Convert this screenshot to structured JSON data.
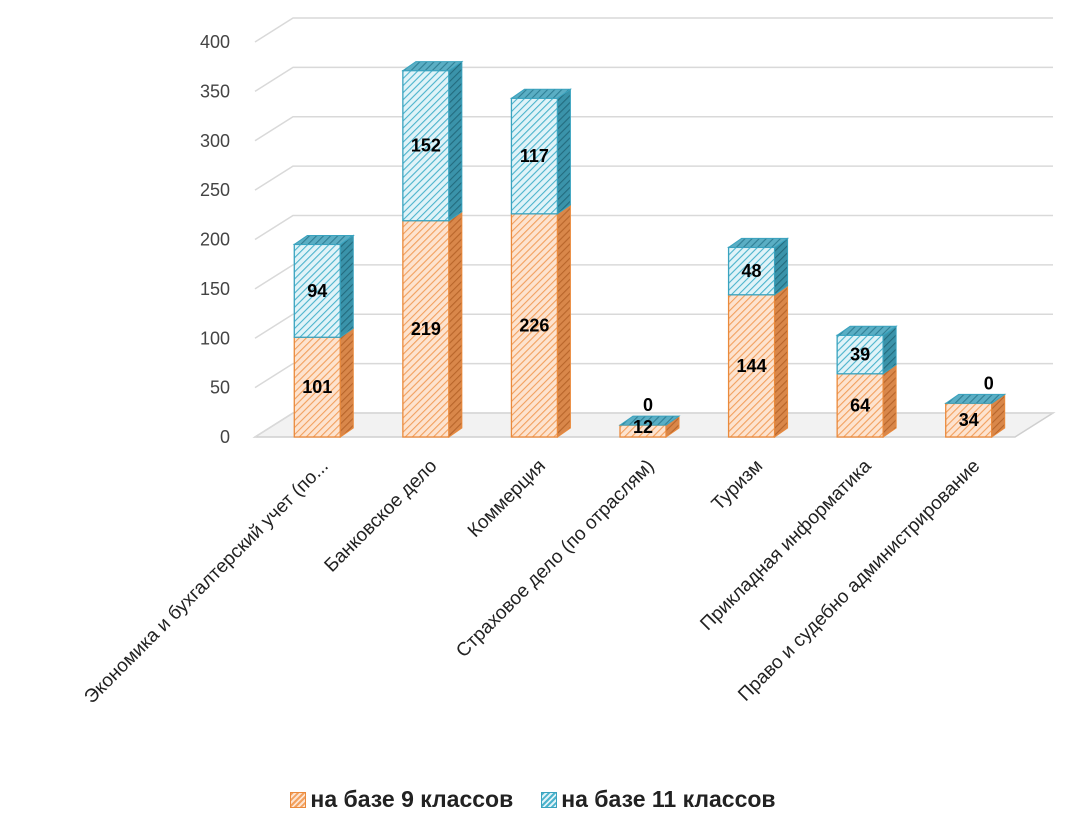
{
  "chart_data": {
    "type": "bar",
    "stacked": true,
    "style": "3d",
    "categories": [
      "Экономика и бухгалтерский учет (по...",
      "Банковское дело",
      "Коммерция",
      "Страховое дело (по отраслям)",
      "Туризм",
      "Прикладная информатика",
      "Право и судебно администрирование"
    ],
    "series": [
      {
        "name": "на базе 9 классов",
        "values": [
          101,
          219,
          226,
          12,
          144,
          64,
          34
        ],
        "color": "#f2a05e",
        "border": "#ea8a3c"
      },
      {
        "name": "на базе 11 классов",
        "values": [
          94,
          152,
          117,
          0,
          48,
          39,
          0
        ],
        "color": "#4bb3cc",
        "border": "#3aa3bf"
      }
    ],
    "yticks": [
      0,
      50,
      100,
      150,
      200,
      250,
      300,
      350,
      400
    ],
    "ylim": [
      0,
      400
    ],
    "grid": true,
    "legend_position": "bottom"
  }
}
